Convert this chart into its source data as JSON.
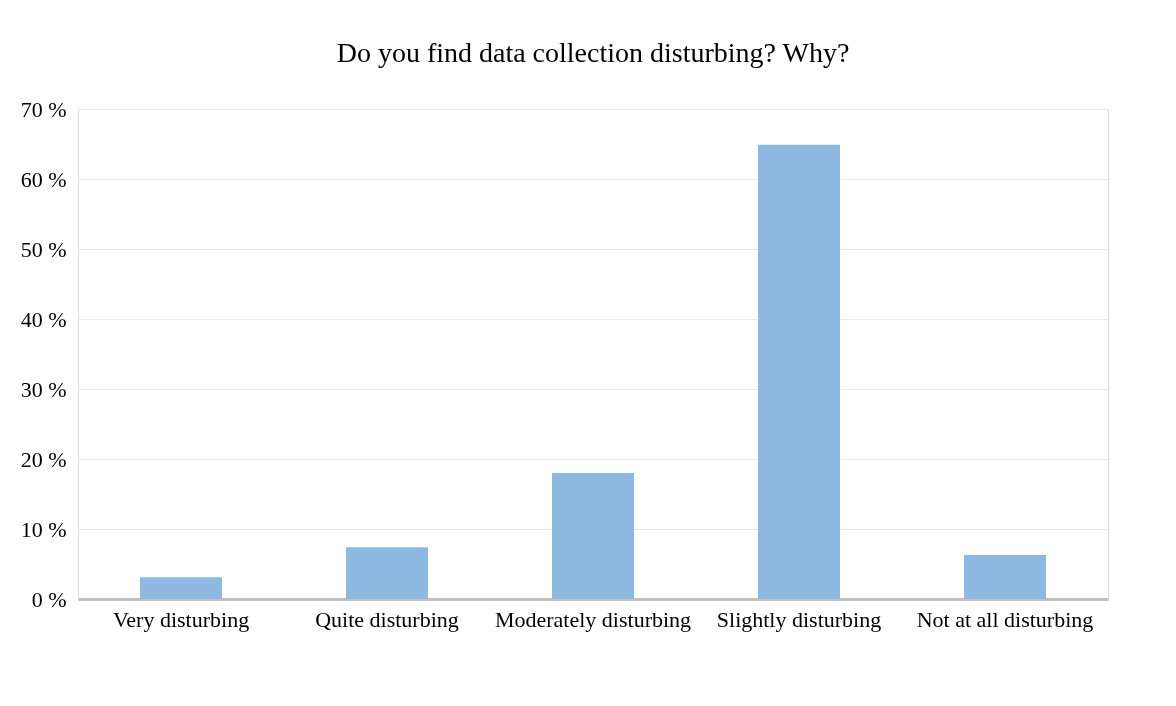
{
  "chart_data": {
    "type": "bar",
    "title": "Do you find data collection disturbing? Why?",
    "categories": [
      "Very disturbing",
      "Quite disturbing",
      "Moderately disturbing",
      "Slightly disturbing",
      "Not at all disturbing"
    ],
    "values": [
      3.1,
      7.4,
      18.0,
      64.9,
      6.3
    ],
    "color": "#8db8e2",
    "ylim": [
      0,
      70
    ],
    "yticks": [
      {
        "value": 0,
        "label": "0 %"
      },
      {
        "value": 10,
        "label": "10 %"
      },
      {
        "value": 20,
        "label": "20 %"
      },
      {
        "value": 30,
        "label": "30 %"
      },
      {
        "value": 40,
        "label": "40 %"
      },
      {
        "value": 50,
        "label": "50 %"
      },
      {
        "value": 60,
        "label": "60 %"
      },
      {
        "value": 70,
        "label": "70 %"
      }
    ],
    "grid": "y"
  }
}
